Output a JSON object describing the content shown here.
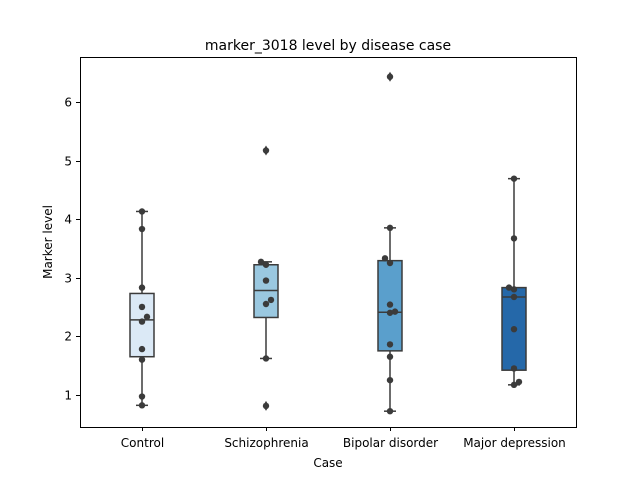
{
  "chart_data": {
    "type": "box",
    "title": "marker_3018 level by disease case",
    "xlabel": "Case",
    "ylabel": "Marker level",
    "ylim": [
      0.45,
      6.75
    ],
    "yticks": [
      1,
      2,
      3,
      4,
      5,
      6
    ],
    "grid": false,
    "categories": [
      "Control",
      "Schizophrenia",
      "Bipolar disorder",
      "Major depression"
    ],
    "colors": [
      "#dbe9f6",
      "#9ac8e0",
      "#5a9fcc",
      "#2568a9"
    ],
    "series": [
      {
        "category": "Control",
        "box": {
          "whisker_low": 0.82,
          "q1": 1.65,
          "median": 2.28,
          "q3": 2.73,
          "whisker_high": 4.13
        },
        "outliers": [],
        "points": [
          0.82,
          0.97,
          1.6,
          1.78,
          2.25,
          2.33,
          2.5,
          2.83,
          3.83,
          4.13
        ]
      },
      {
        "category": "Schizophrenia",
        "box": {
          "whisker_low": 1.62,
          "q1": 2.32,
          "median": 2.78,
          "q3": 3.22,
          "whisker_high": 3.27
        },
        "outliers": [
          0.81,
          5.17
        ],
        "points": [
          0.81,
          1.62,
          2.55,
          2.62,
          2.95,
          3.22,
          3.27,
          5.17
        ]
      },
      {
        "category": "Bipolar disorder",
        "box": {
          "whisker_low": 0.72,
          "q1": 1.75,
          "median": 2.41,
          "q3": 3.29,
          "whisker_high": 3.85
        },
        "outliers": [
          6.43
        ],
        "points": [
          0.72,
          1.25,
          1.65,
          1.86,
          2.4,
          2.42,
          2.54,
          3.25,
          3.33,
          3.85,
          6.43
        ]
      },
      {
        "category": "Major depression",
        "box": {
          "whisker_low": 1.17,
          "q1": 1.42,
          "median": 2.67,
          "q3": 2.83,
          "whisker_high": 4.69
        },
        "outliers": [],
        "points": [
          1.17,
          1.22,
          1.45,
          2.12,
          2.67,
          2.8,
          2.83,
          3.67,
          4.69
        ]
      }
    ]
  }
}
